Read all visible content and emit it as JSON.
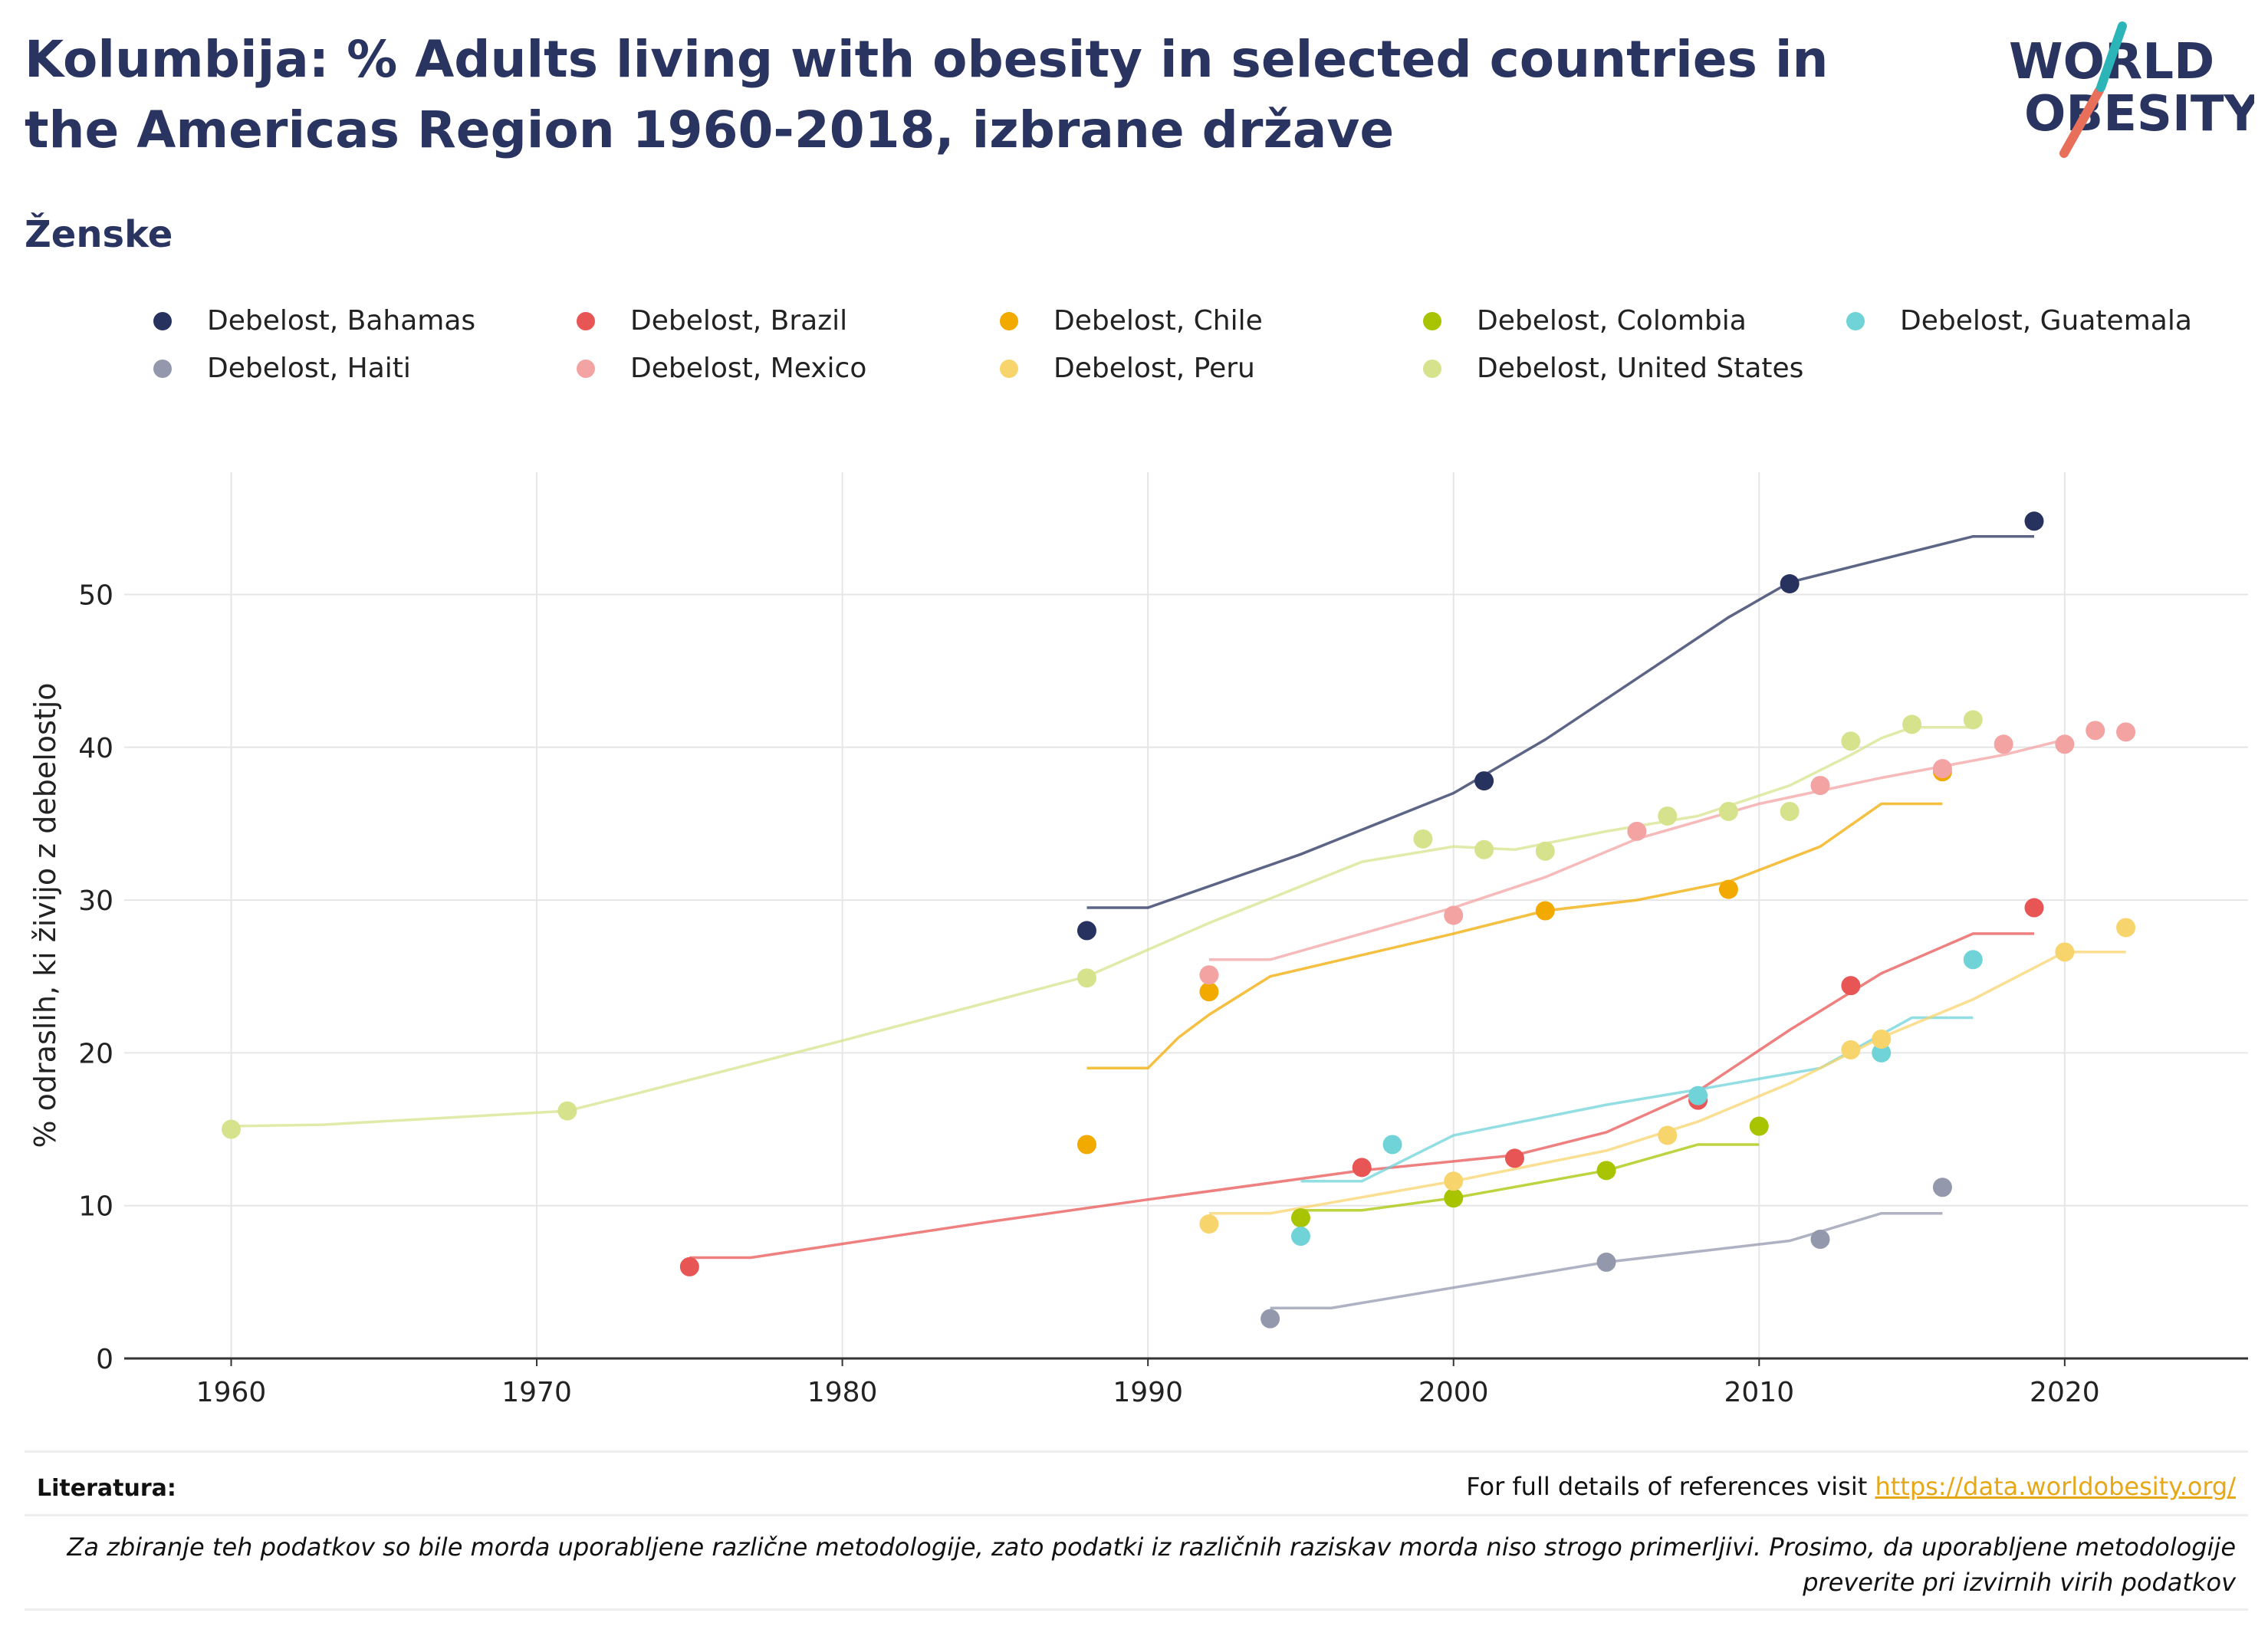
{
  "title": "Kolumbija: % Adults living with obesity in selected countries in the Americas Region 1960-2018, izbrane države",
  "subtitle": "Ženske",
  "logo": {
    "line1": "WORLD",
    "line2": "OBESITY"
  },
  "footer": {
    "literature_label": "Literatura:",
    "references_text": "For full details of references visit ",
    "references_link": "https://data.worldobesity.org/",
    "note": "Za zbiranje teh podatkov so bile morda uporabljene različne metodologije, zato podatki iz različnih raziskav morda niso strogo primerljivi. Prosimo, da uporabljene metodologije preverite pri izvirnih virih podatkov"
  },
  "chart_data": {
    "type": "scatter",
    "ylabel": "% odraslih, ki živijo z debelostjo",
    "xlim": [
      1956.5,
      2026
    ],
    "ylim": [
      0,
      58
    ],
    "xticks": [
      1960,
      1970,
      1980,
      1990,
      2000,
      2010,
      2020
    ],
    "yticks": [
      0,
      10,
      20,
      30,
      40,
      50
    ],
    "grid": true,
    "legend_position": "top",
    "series": [
      {
        "name": "Debelost, Bahamas",
        "color": "#27325e",
        "points": [
          [
            1988,
            28.0
          ],
          [
            2001,
            37.8
          ],
          [
            2011,
            50.7
          ],
          [
            2019,
            54.8
          ]
        ],
        "trend": [
          [
            1988,
            29.5
          ],
          [
            1990,
            29.5
          ],
          [
            1995,
            33.0
          ],
          [
            2000,
            37.0
          ],
          [
            2003,
            40.5
          ],
          [
            2006,
            44.5
          ],
          [
            2009,
            48.5
          ],
          [
            2011,
            50.8
          ],
          [
            2013,
            51.8
          ],
          [
            2017,
            53.8
          ],
          [
            2019,
            53.8
          ]
        ]
      },
      {
        "name": "Debelost, Brazil",
        "color": "#e85555",
        "points": [
          [
            1975,
            6.0
          ],
          [
            1997,
            12.5
          ],
          [
            2002,
            13.1
          ],
          [
            2008,
            16.9
          ],
          [
            2013,
            24.4
          ],
          [
            2019,
            29.5
          ]
        ],
        "trend": [
          [
            1975,
            6.6
          ],
          [
            1977,
            6.6
          ],
          [
            1985,
            9.0
          ],
          [
            1990,
            10.4
          ],
          [
            1997,
            12.3
          ],
          [
            2002,
            13.3
          ],
          [
            2005,
            14.8
          ],
          [
            2008,
            17.5
          ],
          [
            2011,
            21.5
          ],
          [
            2014,
            25.2
          ],
          [
            2017,
            27.8
          ],
          [
            2019,
            27.8
          ]
        ]
      },
      {
        "name": "Debelost, Chile",
        "color": "#f2a900",
        "points": [
          [
            1988,
            14.0
          ],
          [
            1992,
            24.0
          ],
          [
            2003,
            29.3
          ],
          [
            2009,
            30.7
          ],
          [
            2016,
            38.4
          ]
        ],
        "trend": [
          [
            1988,
            19.0
          ],
          [
            1990,
            19.0
          ],
          [
            1991,
            21.0
          ],
          [
            1992,
            22.5
          ],
          [
            1994,
            25.0
          ],
          [
            2000,
            27.8
          ],
          [
            2003,
            29.3
          ],
          [
            2006,
            30.0
          ],
          [
            2009,
            31.2
          ],
          [
            2012,
            33.5
          ],
          [
            2014,
            36.3
          ],
          [
            2016,
            36.3
          ]
        ]
      },
      {
        "name": "Debelost, Colombia",
        "color": "#a8c400",
        "points": [
          [
            1995,
            9.2
          ],
          [
            2000,
            10.5
          ],
          [
            2005,
            12.3
          ],
          [
            2010,
            15.2
          ]
        ],
        "trend": [
          [
            1995,
            9.7
          ],
          [
            1997,
            9.7
          ],
          [
            2000,
            10.5
          ],
          [
            2005,
            12.3
          ],
          [
            2008,
            14.0
          ],
          [
            2010,
            14.0
          ]
        ]
      },
      {
        "name": "Debelost, Guatemala",
        "color": "#6fd3d8",
        "points": [
          [
            1995,
            8.0
          ],
          [
            1998,
            14.0
          ],
          [
            2008,
            17.2
          ],
          [
            2014,
            20.0
          ],
          [
            2017,
            26.1
          ]
        ],
        "trend": [
          [
            1995,
            11.6
          ],
          [
            1997,
            11.6
          ],
          [
            2000,
            14.6
          ],
          [
            2005,
            16.6
          ],
          [
            2008,
            17.6
          ],
          [
            2012,
            19.0
          ],
          [
            2015,
            22.3
          ],
          [
            2017,
            22.3
          ]
        ]
      },
      {
        "name": "Debelost, Haiti",
        "color": "#9398ad",
        "points": [
          [
            1994,
            2.6
          ],
          [
            2005,
            6.3
          ],
          [
            2012,
            7.8
          ],
          [
            2016,
            11.2
          ]
        ],
        "trend": [
          [
            1994,
            3.3
          ],
          [
            1996,
            3.3
          ],
          [
            2005,
            6.3
          ],
          [
            2011,
            7.7
          ],
          [
            2014,
            9.5
          ],
          [
            2016,
            9.5
          ]
        ]
      },
      {
        "name": "Debelost, Mexico",
        "color": "#f4a3a3",
        "points": [
          [
            1992,
            25.1
          ],
          [
            2000,
            29.0
          ],
          [
            2006,
            34.5
          ],
          [
            2012,
            37.5
          ],
          [
            2016,
            38.6
          ],
          [
            2018,
            40.2
          ],
          [
            2020,
            40.2
          ],
          [
            2021,
            41.1
          ],
          [
            2022,
            41.0
          ]
        ],
        "trend": [
          [
            1992,
            26.1
          ],
          [
            1994,
            26.1
          ],
          [
            2000,
            29.5
          ],
          [
            2003,
            31.5
          ],
          [
            2006,
            34.0
          ],
          [
            2010,
            36.3
          ],
          [
            2014,
            38.0
          ],
          [
            2018,
            39.5
          ],
          [
            2020,
            40.5
          ]
        ]
      },
      {
        "name": "Debelost, Peru",
        "color": "#f8d46d",
        "points": [
          [
            1992,
            8.8
          ],
          [
            2000,
            11.6
          ],
          [
            2007,
            14.6
          ],
          [
            2013,
            20.2
          ],
          [
            2014,
            20.9
          ],
          [
            2020,
            26.6
          ],
          [
            2022,
            28.2
          ]
        ],
        "trend": [
          [
            1992,
            9.5
          ],
          [
            1994,
            9.5
          ],
          [
            2000,
            11.6
          ],
          [
            2005,
            13.6
          ],
          [
            2008,
            15.5
          ],
          [
            2011,
            18.0
          ],
          [
            2014,
            21.0
          ],
          [
            2017,
            23.5
          ],
          [
            2020,
            26.6
          ],
          [
            2022,
            26.6
          ]
        ]
      },
      {
        "name": "Debelost, United States",
        "color": "#d7e38c",
        "points": [
          [
            1960,
            15.0
          ],
          [
            1971,
            16.2
          ],
          [
            1988,
            24.9
          ],
          [
            1999,
            34.0
          ],
          [
            2001,
            33.3
          ],
          [
            2003,
            33.2
          ],
          [
            2007,
            35.5
          ],
          [
            2009,
            35.8
          ],
          [
            2011,
            35.8
          ],
          [
            2013,
            40.4
          ],
          [
            2015,
            41.5
          ],
          [
            2017,
            41.8
          ]
        ],
        "trend": [
          [
            1960,
            15.2
          ],
          [
            1963,
            15.3
          ],
          [
            1971,
            16.2
          ],
          [
            1973,
            17.2
          ],
          [
            1980,
            20.8
          ],
          [
            1988,
            25.0
          ],
          [
            1992,
            28.5
          ],
          [
            1997,
            32.5
          ],
          [
            2000,
            33.5
          ],
          [
            2002,
            33.3
          ],
          [
            2005,
            34.5
          ],
          [
            2008,
            35.5
          ],
          [
            2011,
            37.5
          ],
          [
            2013,
            39.5
          ],
          [
            2014,
            40.6
          ],
          [
            2015,
            41.3
          ],
          [
            2017,
            41.3
          ]
        ]
      }
    ]
  }
}
